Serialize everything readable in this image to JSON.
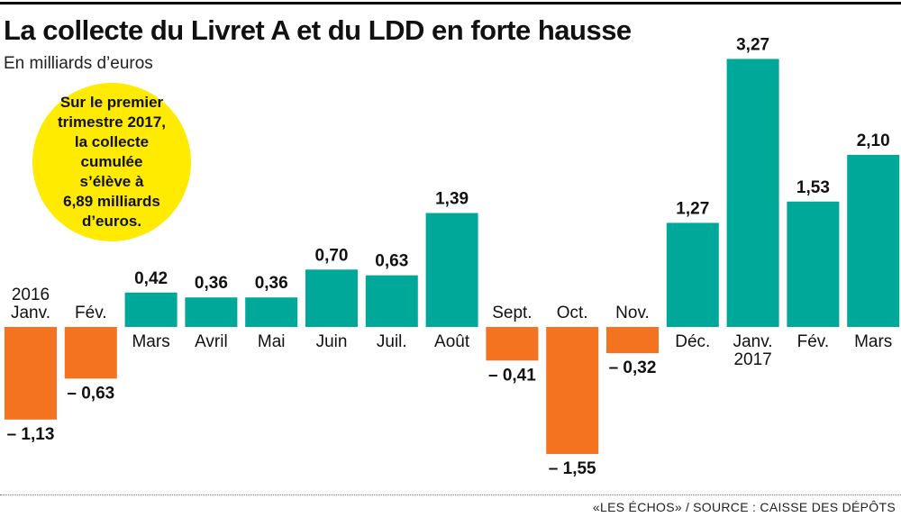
{
  "header": {
    "title": "La collecte du Livret A et du LDD en forte hausse",
    "subtitle": "En milliards d’euros"
  },
  "callout": {
    "text": "Sur le premier\ntrimestre 2017,\nla collecte cumulée\ns’élève à\n6,89 milliards\nd’euros."
  },
  "footer": {
    "publisher": "«LES ÉCHOS»",
    "source": "SOURCE : CAISSE DES DÉPÔTS"
  },
  "colors": {
    "positive": "#00a89a",
    "negative": "#f47321",
    "callout": "#ffeb00",
    "text": "#111111"
  },
  "chart_data": {
    "type": "bar",
    "title": "La collecte du Livret A et du LDD en forte hausse",
    "subtitle": "En milliards d’euros",
    "categories": [
      "Janv.",
      "Fév.",
      "Mars",
      "Avril",
      "Mai",
      "Juin",
      "Juil.",
      "Août",
      "Sept.",
      "Oct.",
      "Nov.",
      "Déc.",
      "Janv.",
      "Fév.",
      "Mars"
    ],
    "year_labels": [
      "2016",
      "",
      "",
      "",
      "",
      "",
      "",
      "",
      "",
      "",
      "",
      "",
      "2017",
      "",
      ""
    ],
    "values": [
      -1.13,
      -0.63,
      0.42,
      0.36,
      0.36,
      0.7,
      0.63,
      1.39,
      -0.41,
      -1.55,
      -0.32,
      1.27,
      3.27,
      1.53,
      2.1
    ],
    "value_labels": [
      "– 1,13",
      "– 0,63",
      "0,42",
      "0,36",
      "0,36",
      "0,70",
      "0,63",
      "1,39",
      "– 0,41",
      "– 1,55",
      "– 0,32",
      "1,27",
      "3,27",
      "1,53",
      "2,10"
    ],
    "ylim": [
      -1.55,
      3.27
    ],
    "grid": false,
    "legend": "none"
  }
}
